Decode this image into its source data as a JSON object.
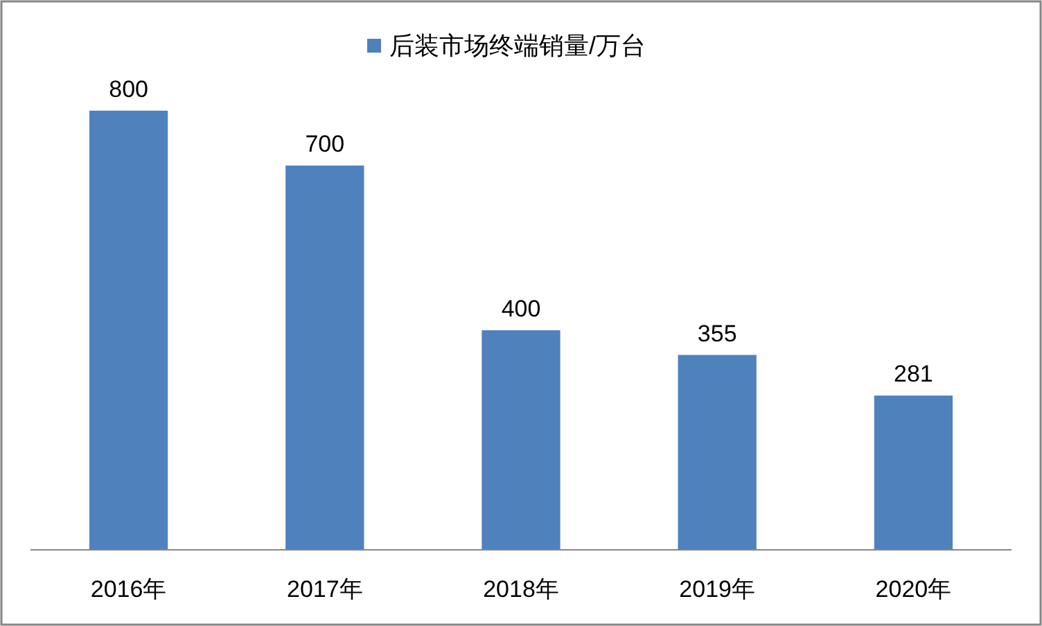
{
  "chart_data": {
    "type": "bar",
    "categories": [
      "2016年",
      "2017年",
      "2018年",
      "2019年",
      "2020年"
    ],
    "series": [
      {
        "name": "后装市场终端销量/万台",
        "color": "#4f81bd",
        "values": [
          800,
          700,
          400,
          355,
          281
        ]
      }
    ],
    "data_labels": true,
    "legend": "top"
  }
}
